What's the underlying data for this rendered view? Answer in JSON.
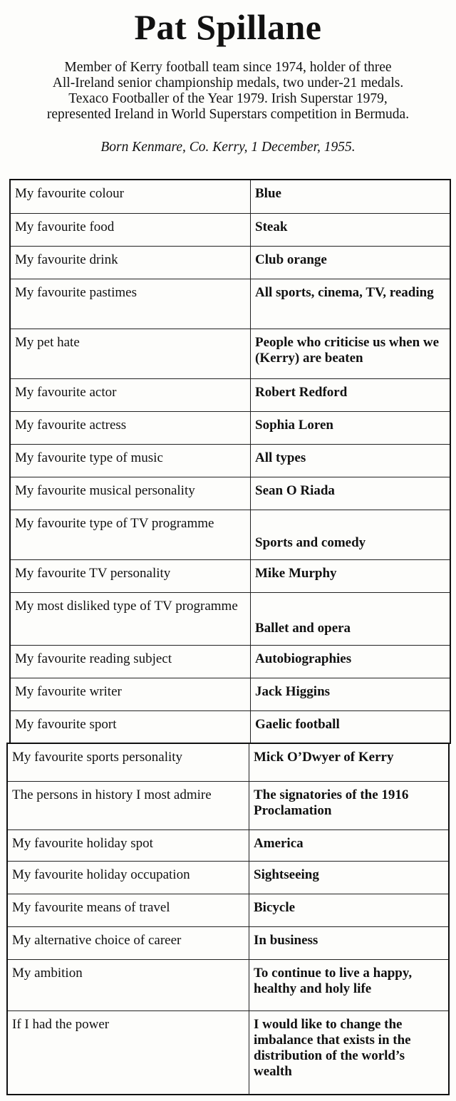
{
  "title": "Pat Spillane",
  "intro": [
    "Member of Kerry football team since 1974, holder of three",
    "All-Ireland senior championship medals, two under-21 medals.",
    "Texaco Footballer of the Year 1979. Irish Superstar 1979,",
    "represented Ireland in World Superstars competition in Bermuda."
  ],
  "born": "Born Kenmare, Co. Kerry, 1 December, 1955.",
  "table1": [
    {
      "label": "My favourite colour",
      "value": "Blue"
    },
    {
      "label": "My favourite food",
      "value": "Steak"
    },
    {
      "label": "My favourite drink",
      "value": "Club orange"
    },
    {
      "label": "My favourite pastimes",
      "value": "All sports, cinema, TV, reading"
    },
    {
      "label": "My pet hate",
      "value": "People who criticise us when we (Kerry) are beaten"
    },
    {
      "label": "My favourite actor",
      "value": "Robert Redford"
    },
    {
      "label": "My favourite actress",
      "value": "Sophia Loren"
    },
    {
      "label": "My favourite type of music",
      "value": "All types"
    },
    {
      "label": "My favourite musical personality",
      "value": "Sean O Riada"
    },
    {
      "label": "My favourite type of TV programme",
      "value": "Sports and comedy"
    },
    {
      "label": "My favourite TV personality",
      "value": "Mike Murphy"
    },
    {
      "label": "My most disliked type of TV programme",
      "value": "Ballet and opera"
    },
    {
      "label": "My favourite reading subject",
      "value": "Autobiographies"
    },
    {
      "label": "My favourite writer",
      "value": "Jack Higgins"
    },
    {
      "label": "My favourite sport",
      "value": "Gaelic football"
    }
  ],
  "table2": [
    {
      "label": "My favourite sports personality",
      "value": "Mick O’Dwyer of Kerry"
    },
    {
      "label": "The persons in history I most admire",
      "value": "The signatories of the 1916 Proclamation"
    },
    {
      "label": "My favourite holiday spot",
      "value": "America"
    },
    {
      "label": "My favourite holiday occupation",
      "value": "Sightseeing"
    },
    {
      "label": "My favourite means of travel",
      "value": "Bicycle"
    },
    {
      "label": "My alternative choice of career",
      "value": "In business"
    },
    {
      "label": "My ambition",
      "value": "To continue to live a happy, healthy and holy life"
    },
    {
      "label": "If I had the power",
      "value": "I would like to change the imbalance that exists in the distribution of the world’s wealth"
    }
  ]
}
